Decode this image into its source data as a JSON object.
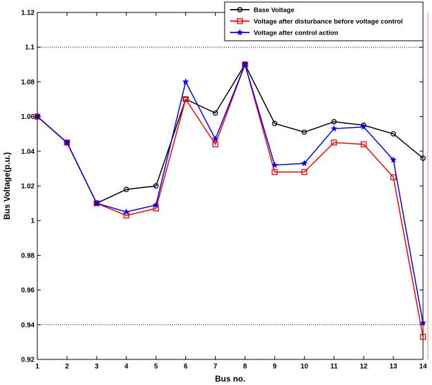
{
  "chart_data": {
    "type": "line",
    "title": "",
    "xlabel": "Bus no.",
    "ylabel": "Bus Voltage(p.u.)",
    "xlim": [
      1,
      14
    ],
    "ylim": [
      0.92,
      1.12
    ],
    "x_ticks": [
      1,
      2,
      3,
      4,
      5,
      6,
      7,
      8,
      9,
      10,
      11,
      12,
      13,
      14
    ],
    "y_ticks": [
      "0.92",
      "0.94",
      "0.96",
      "0.98",
      "1",
      "1.02",
      "1.04",
      "1.06",
      "1.08",
      "1.1",
      "1.12"
    ],
    "reference_lines": [
      1.1,
      0.94
    ],
    "legend_position": "top-right",
    "x": [
      1,
      2,
      3,
      4,
      5,
      6,
      7,
      8,
      9,
      10,
      11,
      12,
      13,
      14
    ],
    "series": [
      {
        "name": "Base Voltage",
        "color": "#000000",
        "marker": "circle",
        "values": [
          1.06,
          1.045,
          1.01,
          1.018,
          1.02,
          1.07,
          1.062,
          1.09,
          1.056,
          1.051,
          1.057,
          1.055,
          1.05,
          1.036
        ]
      },
      {
        "name": "Voltage after disturbance before voltage control",
        "color": "#ff0000",
        "marker": "square",
        "values": [
          1.06,
          1.045,
          1.01,
          1.003,
          1.007,
          1.07,
          1.044,
          1.09,
          1.028,
          1.028,
          1.045,
          1.044,
          1.025,
          0.933
        ]
      },
      {
        "name": "Voltage after control action",
        "color": "#0000ff",
        "marker": "star",
        "values": [
          1.06,
          1.045,
          1.01,
          1.005,
          1.009,
          1.08,
          1.047,
          1.09,
          1.032,
          1.033,
          1.053,
          1.054,
          1.035,
          0.941
        ]
      }
    ]
  }
}
